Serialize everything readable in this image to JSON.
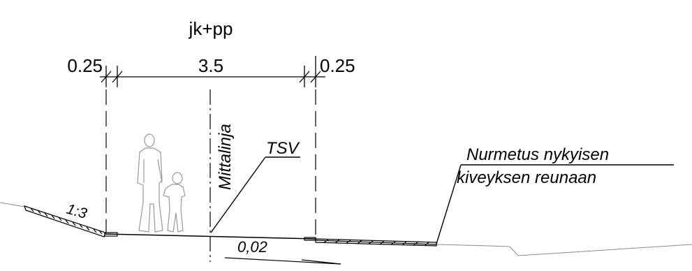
{
  "section_title": "jk+pp",
  "dimensions": {
    "left_shoulder": "0.25",
    "path_width": "3.5",
    "right_shoulder": "0.25"
  },
  "labels": {
    "measure_line": "Mittalinja",
    "tsv": "TSV",
    "note_line1": "Nurmetus nykyisen",
    "note_line2": "kiveyksen reunaan",
    "slope_ratio": "1:3",
    "cross_slope": "0,02"
  },
  "icons": [
    "pedestrian-adult-icon",
    "pedestrian-child-icon"
  ]
}
